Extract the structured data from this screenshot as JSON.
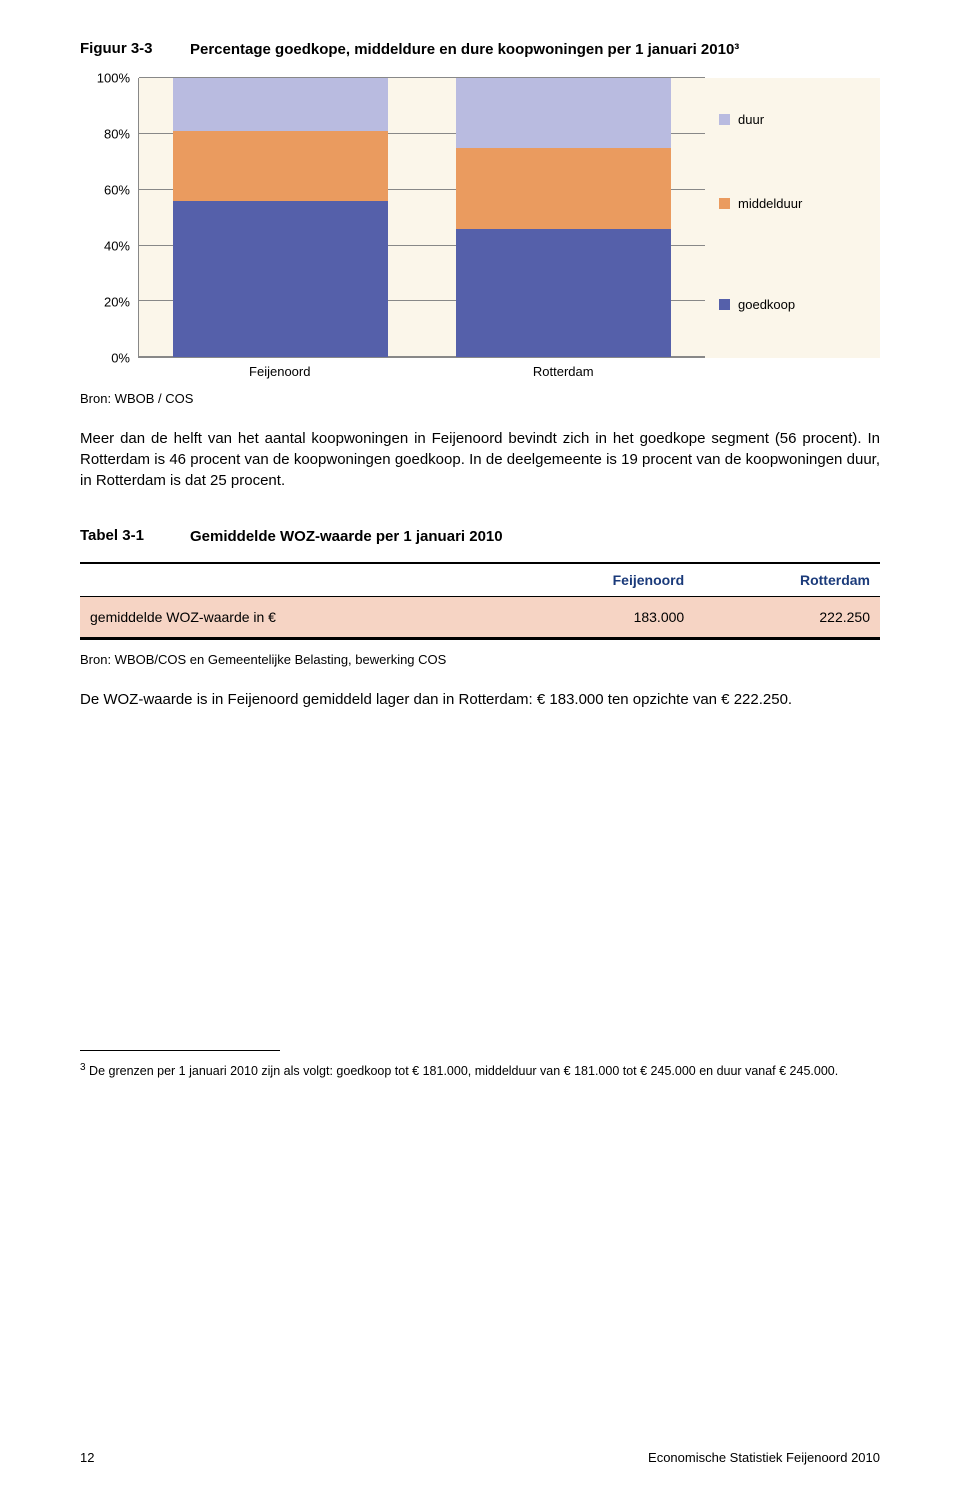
{
  "figure": {
    "label": "Figuur 3-3",
    "title": "Percentage goedkope, middeldure en dure koopwoningen per 1 januari 2010³",
    "chart": {
      "type": "stacked-bar",
      "background_color": "#fbf6ea",
      "grid_color": "#888888",
      "ylim": [
        0,
        100
      ],
      "ytick_step": 20,
      "ytick_labels": [
        "0%",
        "20%",
        "40%",
        "60%",
        "80%",
        "100%"
      ],
      "categories": [
        "Feijenoord",
        "Rotterdam"
      ],
      "series": [
        {
          "key": "duur",
          "label": "duur",
          "color": "#b9bbe0",
          "values": [
            19,
            25
          ]
        },
        {
          "key": "middelduur",
          "label": "middelduur",
          "color": "#ea9b5f",
          "values": [
            25,
            29
          ]
        },
        {
          "key": "goedkoop",
          "label": "goedkoop",
          "color": "#5560aa",
          "values": [
            56,
            46
          ]
        }
      ],
      "bar_width": 0.76,
      "axis_fontsize": 13,
      "label_fontsize": 13
    },
    "source": "Bron: WBOB / COS"
  },
  "paragraph1": "Meer dan de helft van het aantal koopwoningen in Feijenoord bevindt zich in het goedkope segment (56 procent). In Rotterdam is 46 procent van de koopwoningen goedkoop. In de deelgemeente is 19 procent van de koopwoningen duur, in Rotterdam is dat 25 procent.",
  "table": {
    "label": "Tabel 3-1",
    "title": "Gemiddelde WOZ-waarde per 1 januari 2010",
    "header_color": "#1a3a7a",
    "row_bg": "#f6d4c4",
    "columns": [
      "",
      "Feijenoord",
      "Rotterdam"
    ],
    "rows": [
      [
        "gemiddelde WOZ-waarde in €",
        "183.000",
        "222.250"
      ]
    ],
    "source": "Bron: WBOB/COS en Gemeentelijke Belasting, bewerking COS"
  },
  "paragraph2": "De WOZ-waarde is in Feijenoord gemiddeld lager dan in Rotterdam: € 183.000 ten opzichte van € 222.250.",
  "footnote": {
    "marker": "3",
    "text": "De grenzen per 1 januari 2010 zijn als volgt: goedkoop tot € 181.000, middelduur van € 181.000 tot € 245.000 en duur vanaf € 245.000."
  },
  "footer": {
    "page": "12",
    "doc": "Economische Statistiek Feijenoord 2010"
  }
}
